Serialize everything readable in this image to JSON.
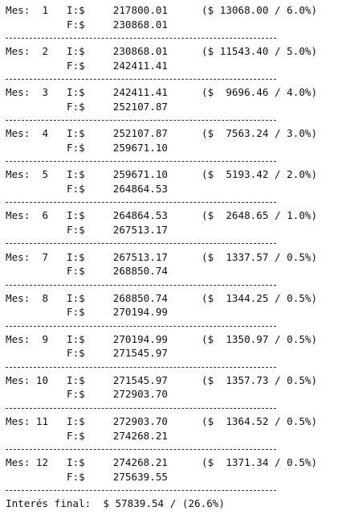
{
  "rows": [
    {
      "mes": "Mes:  1",
      "i_label": "I:$",
      "i_value": "217800.01",
      "detail": "($ 13068.00 / 6.0%)",
      "f_label": "F:$",
      "f_value": "230868.01"
    },
    {
      "mes": "Mes:  2",
      "i_label": "I:$",
      "i_value": "230868.01",
      "detail": "($ 11543.40 / 5.0%)",
      "f_label": "F:$",
      "f_value": "242411.41"
    },
    {
      "mes": "Mes:  3",
      "i_label": "I:$",
      "i_value": "242411.41",
      "detail": "($  9696.46 / 4.0%)",
      "f_label": "F:$",
      "f_value": "252107.87"
    },
    {
      "mes": "Mes:  4",
      "i_label": "I:$",
      "i_value": "252107.87",
      "detail": "($  7563.24 / 3.0%)",
      "f_label": "F:$",
      "f_value": "259671.10"
    },
    {
      "mes": "Mes:  5",
      "i_label": "I:$",
      "i_value": "259671.10",
      "detail": "($  5193.42 / 2.0%)",
      "f_label": "F:$",
      "f_value": "264864.53"
    },
    {
      "mes": "Mes:  6",
      "i_label": "I:$",
      "i_value": "264864.53",
      "detail": "($  2648.65 / 1.0%)",
      "f_label": "F:$",
      "f_value": "267513.17"
    },
    {
      "mes": "Mes:  7",
      "i_label": "I:$",
      "i_value": "267513.17",
      "detail": "($  1337.57 / 0.5%)",
      "f_label": "F:$",
      "f_value": "268850.74"
    },
    {
      "mes": "Mes:  8",
      "i_label": "I:$",
      "i_value": "268850.74",
      "detail": "($  1344.25 / 0.5%)",
      "f_label": "F:$",
      "f_value": "270194.99"
    },
    {
      "mes": "Mes:  9",
      "i_label": "I:$",
      "i_value": "270194.99",
      "detail": "($  1350.97 / 0.5%)",
      "f_label": "F:$",
      "f_value": "271545.97"
    },
    {
      "mes": "Mes: 10",
      "i_label": "I:$",
      "i_value": "271545.97",
      "detail": "($  1357.73 / 0.5%)",
      "f_label": "F:$",
      "f_value": "272903.70"
    },
    {
      "mes": "Mes: 11",
      "i_label": "I:$",
      "i_value": "272903.70",
      "detail": "($  1364.52 / 0.5%)",
      "f_label": "F:$",
      "f_value": "274268.21"
    },
    {
      "mes": "Mes: 12",
      "i_label": "I:$",
      "i_value": "274268.21",
      "detail": "($  1371.34 / 0.5%)",
      "f_label": "F:$",
      "f_value": "275639.55"
    }
  ],
  "final": "Interés final:  $ 57839.54 / (26.6%)"
}
